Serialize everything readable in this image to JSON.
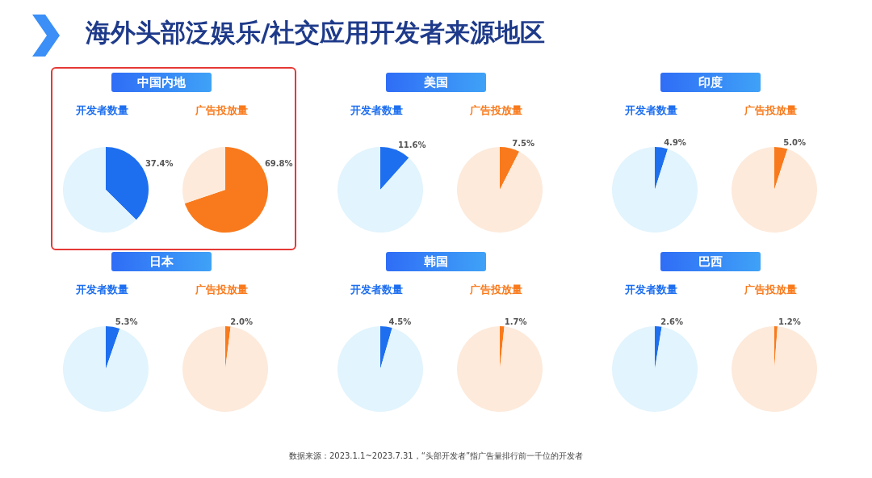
{
  "chart_data": [
    {
      "type": "pie",
      "subtitle": "中国内地",
      "title": "开发者数量",
      "categories": [
        null,
        null
      ],
      "values": [
        37.4,
        62.6
      ],
      "colors": [
        "#1e6ff0",
        "#e2f4fd"
      ],
      "value_labels": [
        "37.4%",
        null
      ]
    },
    {
      "type": "pie",
      "title": "广告投放量",
      "categories": [
        null,
        null
      ],
      "values": [
        69.8,
        30.2
      ],
      "colors": [
        "#f97a1c",
        "#fdeadb"
      ],
      "value_labels": [
        "69.8%",
        null
      ]
    },
    {
      "type": "pie",
      "subtitle": "美国",
      "title": "开发者数量",
      "categories": [
        null,
        null
      ],
      "values": [
        11.6,
        88.4
      ],
      "colors": [
        "#1e6ff0",
        "#e2f4fd"
      ],
      "value_labels": [
        "11.6%",
        null
      ]
    },
    {
      "type": "pie",
      "title": "广告投放量",
      "categories": [
        null,
        null
      ],
      "values": [
        7.5,
        92.5
      ],
      "colors": [
        "#f97a1c",
        "#fdeadb"
      ],
      "value_labels": [
        "7.5%",
        null
      ]
    },
    {
      "type": "pie",
      "subtitle": "印度",
      "title": "开发者数量",
      "categories": [
        null,
        null
      ],
      "values": [
        4.9,
        95.1
      ],
      "colors": [
        "#1e6ff0",
        "#e2f4fd"
      ],
      "value_labels": [
        "4.9%",
        null
      ]
    },
    {
      "type": "pie",
      "title": "广告投放量",
      "categories": [
        null,
        null
      ],
      "values": [
        5.0,
        95.0
      ],
      "colors": [
        "#f97a1c",
        "#fdeadb"
      ],
      "value_labels": [
        "5.0%",
        null
      ]
    },
    {
      "type": "pie",
      "subtitle": "日本",
      "title": "开发者数量",
      "categories": [
        null,
        null
      ],
      "values": [
        5.3,
        94.7
      ],
      "colors": [
        "#1e6ff0",
        "#e2f4fd"
      ],
      "value_labels": [
        "5.3%",
        null
      ]
    },
    {
      "type": "pie",
      "title": "广告投放量",
      "categories": [
        null,
        null
      ],
      "values": [
        2.0,
        98.0
      ],
      "colors": [
        "#f97a1c",
        "#fdeadb"
      ],
      "value_labels": [
        "2.0%",
        null
      ]
    },
    {
      "type": "pie",
      "subtitle": "韩国",
      "title": "开发者数量",
      "categories": [
        null,
        null
      ],
      "values": [
        4.5,
        95.5
      ],
      "colors": [
        "#1e6ff0",
        "#e2f4fd"
      ],
      "value_labels": [
        "4.5%",
        null
      ]
    },
    {
      "type": "pie",
      "title": "广告投放量",
      "categories": [
        null,
        null
      ],
      "values": [
        1.7,
        98.3
      ],
      "colors": [
        "#f97a1c",
        "#fdeadb"
      ],
      "value_labels": [
        "1.7%",
        null
      ]
    },
    {
      "type": "pie",
      "subtitle": "巴西",
      "title": "开发者数量",
      "categories": [
        null,
        null
      ],
      "values": [
        2.6,
        97.4
      ],
      "colors": [
        "#1e6ff0",
        "#e2f4fd"
      ],
      "value_labels": [
        "2.6%",
        null
      ]
    },
    {
      "type": "pie",
      "title": "广告投放量",
      "categories": [
        null,
        null
      ],
      "values": [
        1.2,
        98.8
      ],
      "colors": [
        "#f97a1c",
        "#fdeadb"
      ],
      "value_labels": [
        "1.2%",
        null
      ]
    },
    {
      "type": "other",
      "title": "海外头部泛娱乐/社交应用开发者来源地区",
      "annotations": [
        "数据来源：2023.1.1~2023.7.31，“头部开发者”指广告量排行前一千位的开发者"
      ]
    }
  ]
}
